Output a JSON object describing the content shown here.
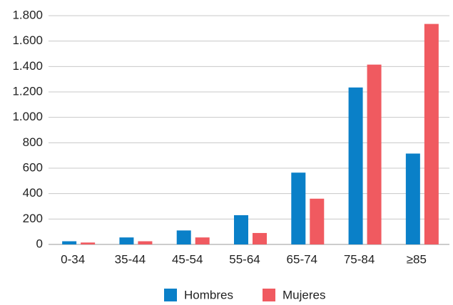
{
  "chart_data": {
    "type": "bar",
    "categories": [
      "0-34",
      "35-44",
      "45-54",
      "55-64",
      "65-74",
      "75-84",
      "≥85"
    ],
    "series": [
      {
        "name": "Hombres",
        "color": "#0a80c8",
        "values": [
          25,
          55,
          110,
          230,
          565,
          1235,
          715
        ]
      },
      {
        "name": "Mujeres",
        "color": "#f05a60",
        "values": [
          15,
          25,
          55,
          90,
          360,
          1415,
          1735
        ]
      }
    ],
    "ylim": [
      0,
      1800
    ],
    "yticks": [
      0,
      200,
      400,
      600,
      800,
      {
        "value": 1000,
        "label": "1.000"
      },
      {
        "value": 1200,
        "label": "1.200"
      },
      {
        "value": 1400,
        "label": "1.400"
      },
      {
        "value": 1600,
        "label": "1.600"
      },
      {
        "value": 1800,
        "label": "1.800"
      }
    ],
    "grid": true,
    "legend": "bottom"
  }
}
